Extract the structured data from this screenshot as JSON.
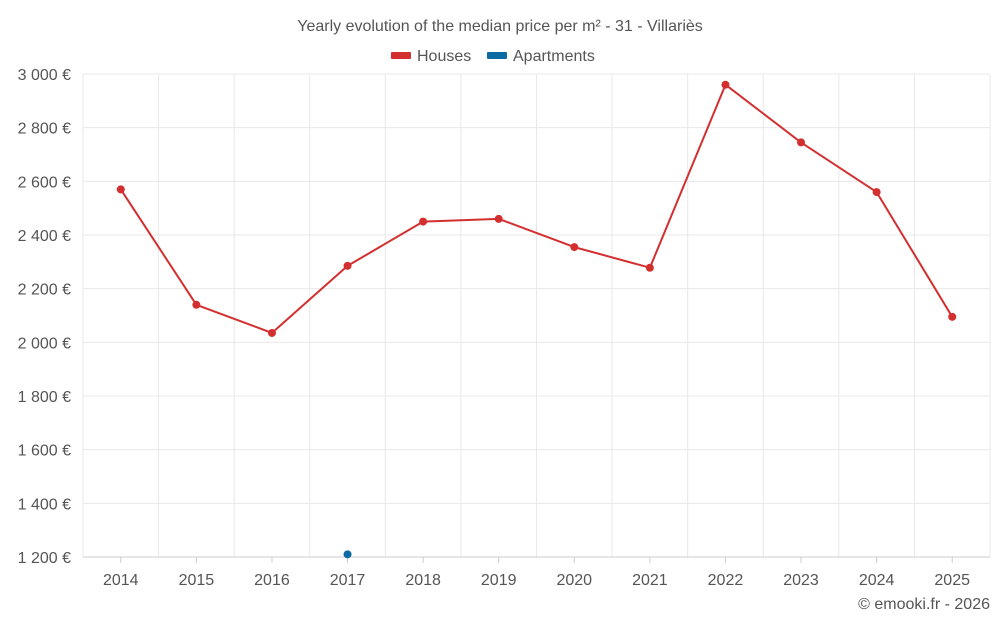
{
  "chart_data": {
    "type": "line",
    "title": "Yearly evolution of the median price per m² - 31 - Villariès",
    "categories": [
      "2014",
      "2015",
      "2016",
      "2017",
      "2018",
      "2019",
      "2020",
      "2021",
      "2022",
      "2023",
      "2024",
      "2025"
    ],
    "y_ticks": [
      "1 200 €",
      "1 400 €",
      "1 600 €",
      "1 800 €",
      "2 000 €",
      "2 200 €",
      "2 400 €",
      "2 600 €",
      "2 800 €",
      "3 000 €"
    ],
    "ylim": [
      1200,
      3000
    ],
    "xlabel": "",
    "ylabel": "",
    "grid": true,
    "legend_position": "top-center",
    "series": [
      {
        "name": "Houses",
        "color": "#d32f2f",
        "values": [
          2570,
          2140,
          2035,
          2285,
          2450,
          2460,
          2355,
          2278,
          2960,
          2745,
          2560,
          2095
        ]
      },
      {
        "name": "Apartments",
        "color": "#0b6aa2",
        "values": [
          null,
          null,
          null,
          1210,
          null,
          null,
          null,
          null,
          null,
          null,
          null,
          null
        ]
      }
    ]
  },
  "credit": "© emooki.fr - 2026"
}
